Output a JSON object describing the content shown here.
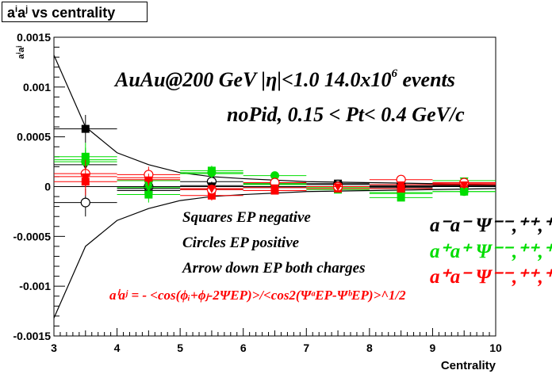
{
  "chart_data": {
    "type": "scatter",
    "title": "aⁱaʲ vs centrality",
    "xlabel": "Centrality",
    "ylabel": "aⁱaʲ",
    "xlim": [
      3,
      10
    ],
    "ylim": [
      -0.0015,
      0.0015
    ],
    "x_ticks": [
      "3",
      "4",
      "5",
      "6",
      "7",
      "8",
      "9",
      "10"
    ],
    "y_ticks": [
      "-0.0015",
      "-0.001",
      "-0.0005",
      "0",
      "0.0005",
      "0.001",
      "0.0015"
    ],
    "grid": false,
    "header_line1": "AuAu@200 GeV |η|<1.0 14.0x10",
    "header_line1_sup": "6",
    "header_line1_tail": " events",
    "header_line2": "noPid, 0.15 < Pt< 0.4 GeV/c",
    "legend_left": [
      "Squares EP negative",
      "Circles EP positive",
      "Arrow down EP both charges"
    ],
    "formula": "aⁱaʲ = - <cos(ϕᵢ+ϕⱼ-2ΨEP)>/<cos2(ΨᵃEP-ΨᵇEP)>^1/2",
    "legend_right": [
      {
        "label": "a⁻a⁻  Ψ⁻⁻,⁺⁺,⁺⁻",
        "color": "#000000"
      },
      {
        "label": "a⁺a⁺  Ψ⁻⁻,⁺⁺,⁺⁻",
        "color": "#00dd00"
      },
      {
        "label": "a⁺a⁻  Ψ⁻⁻,⁺⁺,⁺⁻",
        "color": "#ff0000"
      }
    ],
    "x": [
      3.5,
      4.5,
      5.5,
      6.5,
      7.5,
      8.5,
      9.5
    ],
    "series": [
      {
        "name": "black squares",
        "color": "#000000",
        "marker": "square",
        "values": [
          0.00058,
          -4e-05,
          -3e-05,
          -4e-05,
          3e-05,
          -1e-05,
          1e-05
        ],
        "errors": [
          0.00014,
          8e-05,
          5e-05,
          4e-05,
          3e-05,
          3e-05,
          3e-05
        ]
      },
      {
        "name": "black circles",
        "color": "#000000",
        "marker": "circle-open",
        "values": [
          -0.00016,
          0.0,
          5e-05,
          3e-05,
          2e-05,
          1e-05,
          1e-05
        ],
        "errors": [
          0.00014,
          8e-05,
          5e-05,
          4e-05,
          3e-05,
          3e-05,
          3e-05
        ]
      },
      {
        "name": "black triangles",
        "color": "#000000",
        "marker": "triangle-down",
        "values": [
          0.00022,
          -2e-05,
          1e-05,
          -1e-05,
          2e-05,
          0.0,
          1e-05
        ],
        "errors": [
          0.0001,
          6e-05,
          4e-05,
          3e-05,
          2e-05,
          2e-05,
          2e-05
        ]
      },
      {
        "name": "green squares",
        "color": "#00dd00",
        "marker": "square",
        "values": [
          0.0003,
          -8e-05,
          0.00016,
          2e-05,
          -3e-05,
          -0.00011,
          -5e-05
        ],
        "errors": [
          0.00014,
          8e-05,
          5e-05,
          4e-05,
          3e-05,
          3e-05,
          3e-05
        ]
      },
      {
        "name": "green circles",
        "color": "#00dd00",
        "marker": "circle",
        "values": [
          0.00025,
          6e-05,
          0.00014,
          0.00011,
          -2e-05,
          -6e-05,
          -5e-05
        ],
        "errors": [
          0.00014,
          8e-05,
          5e-05,
          4e-05,
          3e-05,
          3e-05,
          3e-05
        ]
      },
      {
        "name": "green triangles",
        "color": "#00dd00",
        "marker": "triangle-down",
        "values": [
          0.00027,
          -1e-05,
          0.00013,
          3e-05,
          -1e-05,
          -7e-05,
          6e-05
        ],
        "errors": [
          0.0001,
          6e-05,
          4e-05,
          3e-05,
          2e-05,
          2e-05,
          2e-05
        ]
      },
      {
        "name": "red squares",
        "color": "#ff0000",
        "marker": "square",
        "values": [
          5e-05,
          9e-05,
          -9e-05,
          -4e-05,
          -2e-05,
          -2e-05,
          3e-05
        ],
        "errors": [
          0.00014,
          8e-05,
          5e-05,
          4e-05,
          3e-05,
          3e-05,
          3e-05
        ]
      },
      {
        "name": "red circles",
        "color": "#ff0000",
        "marker": "circle-open",
        "values": [
          0.00013,
          0.00012,
          -3e-05,
          4e-05,
          0.0,
          7e-05,
          4e-05
        ],
        "errors": [
          0.00014,
          8e-05,
          5e-05,
          4e-05,
          3e-05,
          3e-05,
          3e-05
        ]
      },
      {
        "name": "red triangles",
        "color": "#ff0000",
        "marker": "triangle-down",
        "values": [
          0.0001,
          7e-05,
          -2e-05,
          -1e-05,
          0.0,
          2e-05,
          2e-05
        ],
        "errors": [
          0.0001,
          6e-05,
          4e-05,
          3e-05,
          2e-05,
          2e-05,
          2e-05
        ]
      }
    ],
    "envelope": {
      "color": "#000000",
      "x": [
        3.0,
        3.5,
        4.0,
        4.5,
        5.0,
        5.5,
        6.0,
        7.0,
        8.0,
        9.0,
        10.0
      ],
      "upper": [
        0.00132,
        0.0006,
        0.00034,
        0.00022,
        0.00014,
        0.0001,
        8e-05,
        5e-05,
        4e-05,
        3e-05,
        2e-05
      ]
    }
  }
}
